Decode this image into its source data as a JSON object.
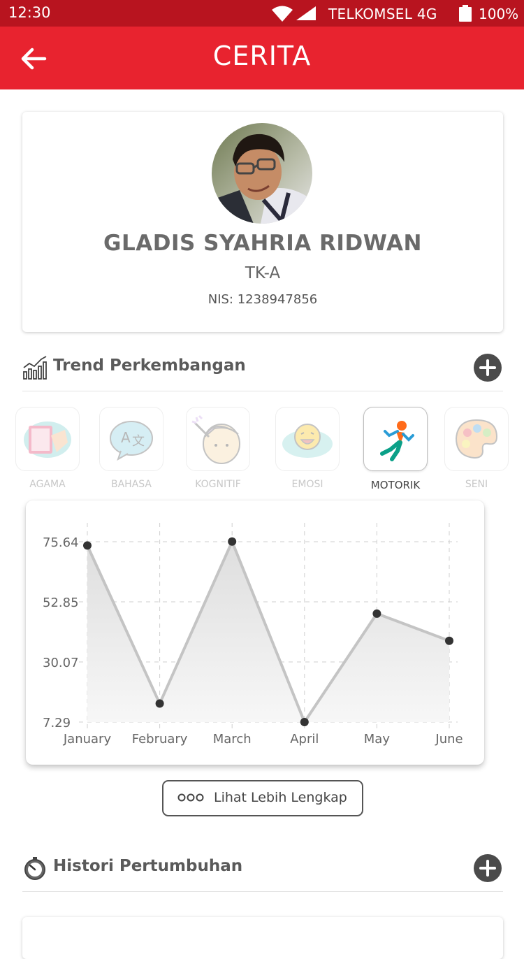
{
  "status_bar": {
    "time": "12:30",
    "carrier": "TELKOMSEL 4G",
    "battery": "100%",
    "icons": [
      "wifi-icon",
      "signal-icon",
      "battery-icon"
    ]
  },
  "app_bar": {
    "title": "CERITA",
    "back_icon": "arrow-left-icon",
    "color": "#e8232f"
  },
  "profile": {
    "name": "GLADIS SYAHRIA RIDWAN",
    "class": "TK-A",
    "nis": "NIS: 1238947856"
  },
  "trend_section": {
    "title": "Trend Perkembangan",
    "icon": "trend-chart-icon",
    "add_icon": "plus-circle-icon"
  },
  "categories": [
    {
      "label": "AGAMA",
      "icon": "praying-book-icon",
      "active": false
    },
    {
      "label": "BAHASA",
      "icon": "language-bubble-icon",
      "active": false
    },
    {
      "label": "KOGNITIF",
      "icon": "thinking-head-icon",
      "active": false
    },
    {
      "label": "EMOSI",
      "icon": "emotion-face-icon",
      "active": false
    },
    {
      "label": "MOTORIK",
      "icon": "running-person-icon",
      "active": true
    },
    {
      "label": "SENI",
      "icon": "paint-palette-icon",
      "active": false
    }
  ],
  "chart_data": {
    "type": "area",
    "categories": [
      "January",
      "February",
      "March",
      "April",
      "May",
      "June"
    ],
    "values": [
      74.2,
      14.3,
      75.7,
      7.3,
      48.4,
      38.1
    ],
    "y_ticks": [
      "75.64",
      "52.85",
      "30.07",
      "7.29"
    ],
    "ylim": [
      7.29,
      75.64
    ],
    "grid": true,
    "line_color": "#c4c4c4",
    "point_color": "#333333"
  },
  "more_button": {
    "label": "Lihat Lebih Lengkap",
    "icon": "three-dots-icon"
  },
  "history_section": {
    "title": "Histori Pertumbuhan",
    "icon": "stopwatch-icon",
    "add_icon": "plus-circle-icon"
  }
}
